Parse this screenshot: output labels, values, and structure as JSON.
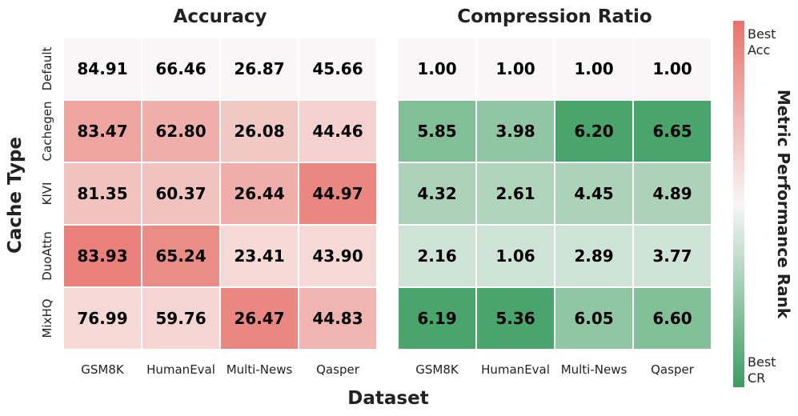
{
  "chart_data": [
    {
      "type": "heatmap",
      "title": "Accuracy",
      "xlabel": "Dataset",
      "ylabel": "Cache Type",
      "columns": [
        "GSM8K",
        "HumanEval",
        "Multi-News",
        "Qasper"
      ],
      "rows": [
        "Default",
        "Cachegen",
        "KIVI",
        "DuoAttn",
        "MixHQ"
      ],
      "values": [
        [
          "84.91",
          "66.46",
          "26.87",
          "45.66"
        ],
        [
          "83.47",
          "62.80",
          "26.08",
          "44.46"
        ],
        [
          "81.35",
          "60.37",
          "26.44",
          "44.97"
        ],
        [
          "83.93",
          "65.24",
          "23.41",
          "43.90"
        ],
        [
          "76.99",
          "59.76",
          "26.47",
          "44.83"
        ]
      ],
      "intensity": [
        [
          0.0,
          0.0,
          0.0,
          0.0
        ],
        [
          0.62,
          0.55,
          0.35,
          0.28
        ],
        [
          0.4,
          0.4,
          0.55,
          0.85
        ],
        [
          0.9,
          0.8,
          0.22,
          0.22
        ],
        [
          0.22,
          0.25,
          0.85,
          0.5
        ]
      ],
      "color": "#e8736b"
    },
    {
      "type": "heatmap",
      "title": "Compression Ratio",
      "xlabel": "Dataset",
      "columns": [
        "GSM8K",
        "HumanEval",
        "Multi-News",
        "Qasper"
      ],
      "rows": [
        "Default",
        "Cachegen",
        "KIVI",
        "DuoAttn",
        "MixHQ"
      ],
      "values": [
        [
          "1.00",
          "1.00",
          "1.00",
          "1.00"
        ],
        [
          "5.85",
          "3.98",
          "6.20",
          "6.65"
        ],
        [
          "4.32",
          "2.61",
          "4.45",
          "4.89"
        ],
        [
          "2.16",
          "1.06",
          "2.89",
          "3.77"
        ],
        [
          "6.19",
          "5.36",
          "6.05",
          "6.60"
        ]
      ],
      "intensity": [
        [
          0.0,
          0.0,
          0.0,
          0.0
        ],
        [
          0.62,
          0.55,
          0.92,
          0.92
        ],
        [
          0.4,
          0.38,
          0.4,
          0.4
        ],
        [
          0.22,
          0.22,
          0.22,
          0.22
        ],
        [
          0.92,
          0.92,
          0.55,
          0.62
        ]
      ],
      "color": "#3a9e5f"
    }
  ],
  "colorbar": {
    "title": "Metric Performance Rank",
    "top_label": [
      "Best",
      "Acc"
    ],
    "bottom_label": [
      "Best",
      "CR"
    ],
    "top_color": "#e8736b",
    "bottom_color": "#3a9e5f"
  },
  "neutral_color": "#f8f6f6"
}
